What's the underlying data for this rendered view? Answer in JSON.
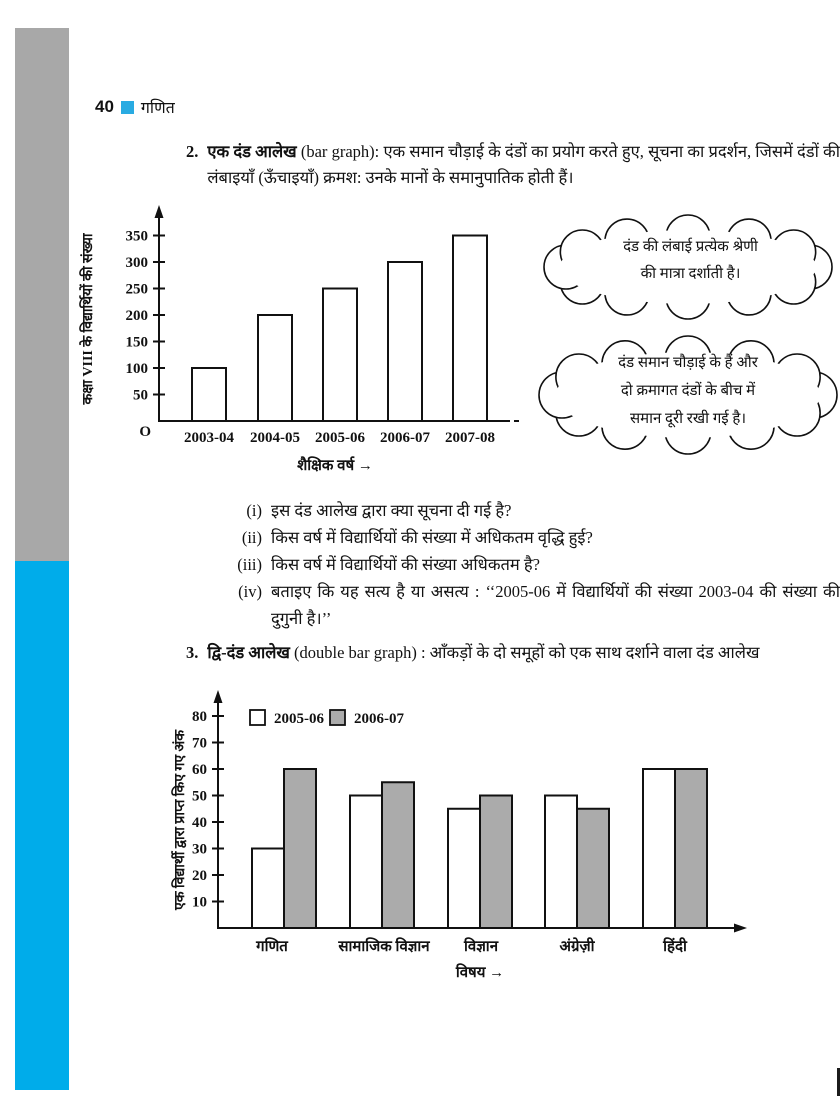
{
  "header": {
    "page_number": "40",
    "title": "गणित"
  },
  "colors": {
    "accent_blue": "#29ABE2",
    "sidebar_gray": "#A8A8A8",
    "sidebar_blue": "#00ACEA",
    "edge_mark": "#1B1B1B"
  },
  "sections": {
    "bar_graph": {
      "number": "2.",
      "term_hi": "एक दंड आलेख",
      "term_en": "(bar graph):",
      "description": "एक समान चौड़ाई के दंडों का प्रयोग करते हुए, सूचना का प्रदर्शन, जिसमें दंडों की लंबाइयाँ (ऊँचाइयाँ) क्रमश: उनके मानों के समानुपातिक होती हैं।"
    },
    "double_bar_graph": {
      "number": "3.",
      "term_hi": "द्वि-दंड आलेख",
      "term_en": "(double bar graph) :",
      "description": "आँकड़ों के दो समूहों को एक साथ दर्शाने वाला दंड आलेख"
    }
  },
  "callouts": [
    {
      "text": "दंड की लंबाई प्रत्येक श्रेणी\nकी मात्रा दर्शाती है।"
    },
    {
      "text": "दंड समान चौड़ाई के हैं और\nदो क्रमागत दंडों के बीच में\nसमान दूरी रखी गई है।"
    }
  ],
  "questions": [
    {
      "marker": "(i)",
      "text": "इस दंड आलेख द्वारा क्या सूचना दी गई है?"
    },
    {
      "marker": "(ii)",
      "text": "किस वर्ष में विद्यार्थियों की संख्या में अधिकतम वृद्धि हुई?"
    },
    {
      "marker": "(iii)",
      "text": "किस वर्ष में विद्यार्थियों की संख्या अधिकतम है?"
    },
    {
      "marker": "(iv)",
      "text": "बताइए कि यह सत्य है या असत्य : ‘‘2005-06 में विद्यार्थियों की संख्या 2003-04 की संख्या की दुगुनी है।’’"
    }
  ],
  "chart_data": [
    {
      "type": "bar",
      "categories": [
        "2003-04",
        "2004-05",
        "2005-06",
        "2006-07",
        "2007-08"
      ],
      "values": [
        100,
        200,
        250,
        300,
        350
      ],
      "xlabel": "शैक्षिक वर्ष →",
      "ylabel": "कक्षा VIII के विद्यार्थियों की संख्या",
      "yticks": [
        50,
        100,
        150,
        200,
        250,
        300,
        350
      ],
      "ylim": [
        0,
        380
      ],
      "origin_label": "O",
      "bar_fill": "#FFFFFF",
      "bar_stroke": "#111111",
      "grid": false
    },
    {
      "type": "bar",
      "grouped": true,
      "categories": [
        "गणित",
        "सामाजिक विज्ञान",
        "विज्ञान",
        "अंग्रेज़ी",
        "हिंदी"
      ],
      "series": [
        {
          "name": "2005-06",
          "values": [
            30,
            50,
            45,
            50,
            60
          ],
          "fill": "#FFFFFF"
        },
        {
          "name": "2006-07",
          "values": [
            60,
            55,
            50,
            45,
            60
          ],
          "fill": "#ABABAB"
        }
      ],
      "xlabel": "विषय →",
      "ylabel": "एक विद्यार्थी द्वारा प्राप्त किए गए अंक",
      "yticks": [
        10,
        20,
        30,
        40,
        50,
        60,
        70,
        80
      ],
      "ylim": [
        0,
        88
      ],
      "legend_position": "top-left",
      "bar_stroke": "#111111",
      "grid": false
    }
  ]
}
